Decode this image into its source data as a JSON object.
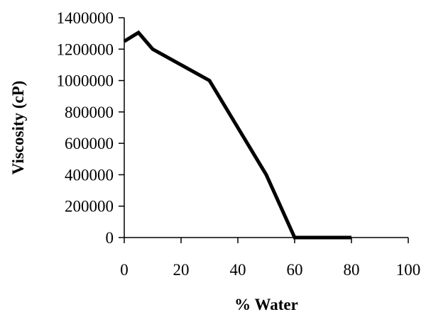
{
  "chart_data": {
    "type": "line",
    "xlabel": "% Water",
    "ylabel": "Viscosity (cP)",
    "xlim": [
      0,
      100
    ],
    "ylim": [
      0,
      1400000
    ],
    "x_ticks": [
      0,
      20,
      40,
      60,
      80,
      100
    ],
    "y_ticks": [
      0,
      200000,
      400000,
      600000,
      800000,
      1000000,
      1200000,
      1400000
    ],
    "x_tick_labels": [
      "0",
      "20",
      "40",
      "60",
      "80",
      "100"
    ],
    "y_tick_labels": [
      "0",
      "200000",
      "400000",
      "600000",
      "800000",
      "1000000",
      "1200000",
      "1400000"
    ],
    "grid": false,
    "legend": "none",
    "series": [
      {
        "x": [
          0,
          5,
          10,
          20,
          30,
          40,
          50,
          60,
          80
        ],
        "y": [
          1250000,
          1305000,
          1200000,
          1100000,
          1000000,
          700000,
          400000,
          0,
          0
        ],
        "color": "#000000"
      }
    ]
  }
}
